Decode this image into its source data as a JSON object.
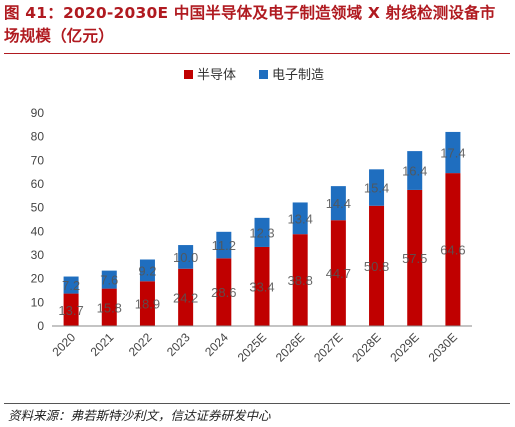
{
  "figure": {
    "title": "图 41：2020-2030E 中国半导体及电子制造领域 X 射线检测设备市场规模（亿元）",
    "source": "资料来源：弗若斯特沙利文，信达证券研发中心"
  },
  "colors": {
    "semiconductor": "#c00000",
    "electronics": "#1f6ebf",
    "title": "#b01a20"
  },
  "chart_data": {
    "type": "bar",
    "stacked": true,
    "categories": [
      "2020",
      "2021",
      "2022",
      "2023",
      "2024",
      "2025E",
      "2026E",
      "2027E",
      "2028E",
      "2029E",
      "2030E"
    ],
    "series": [
      {
        "name": "半导体",
        "values": [
          13.7,
          15.8,
          18.9,
          24.2,
          28.6,
          33.4,
          38.8,
          44.7,
          50.8,
          57.5,
          64.6
        ]
      },
      {
        "name": "电子制造",
        "values": [
          7.2,
          7.6,
          9.2,
          10.0,
          11.2,
          12.3,
          13.4,
          14.4,
          15.4,
          16.4,
          17.4
        ]
      }
    ],
    "ylim": [
      0,
      90
    ],
    "yticks": [
      0,
      10,
      20,
      30,
      40,
      50,
      60,
      70,
      80,
      90
    ],
    "grid": false,
    "legend": "top-center"
  }
}
